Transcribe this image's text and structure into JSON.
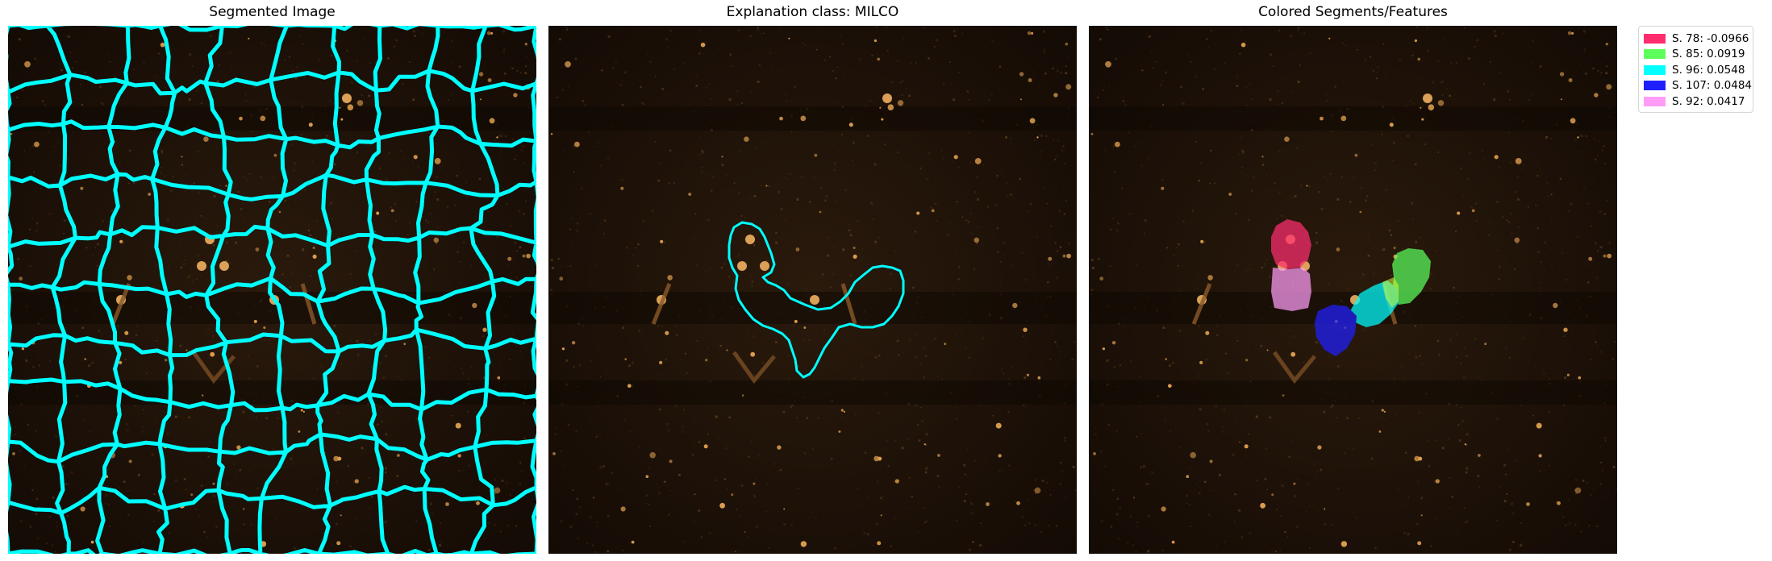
{
  "panels": [
    {
      "title": "Segmented Image"
    },
    {
      "title": "Explanation class: MILCO"
    },
    {
      "title": "Colored Segments/Features"
    }
  ],
  "colors": {
    "boundary": "#00ffff",
    "background": "#1a0f07",
    "highlight": "#e0a050"
  },
  "legend": {
    "items": [
      {
        "label": "S. 78: -0.0966",
        "color": "#ff2d6e",
        "segment": 78,
        "weight": -0.0966
      },
      {
        "label": "S. 85: 0.0919",
        "color": "#5cff5c",
        "segment": 85,
        "weight": 0.0919
      },
      {
        "label": "S. 96: 0.0548",
        "color": "#00ffff",
        "segment": 96,
        "weight": 0.0548
      },
      {
        "label": "S. 107: 0.0484",
        "color": "#2020ff",
        "segment": 107,
        "weight": 0.0484
      },
      {
        "label": "S. 92: 0.0417",
        "color": "#ff9cf7",
        "segment": 92,
        "weight": 0.0417
      }
    ]
  }
}
